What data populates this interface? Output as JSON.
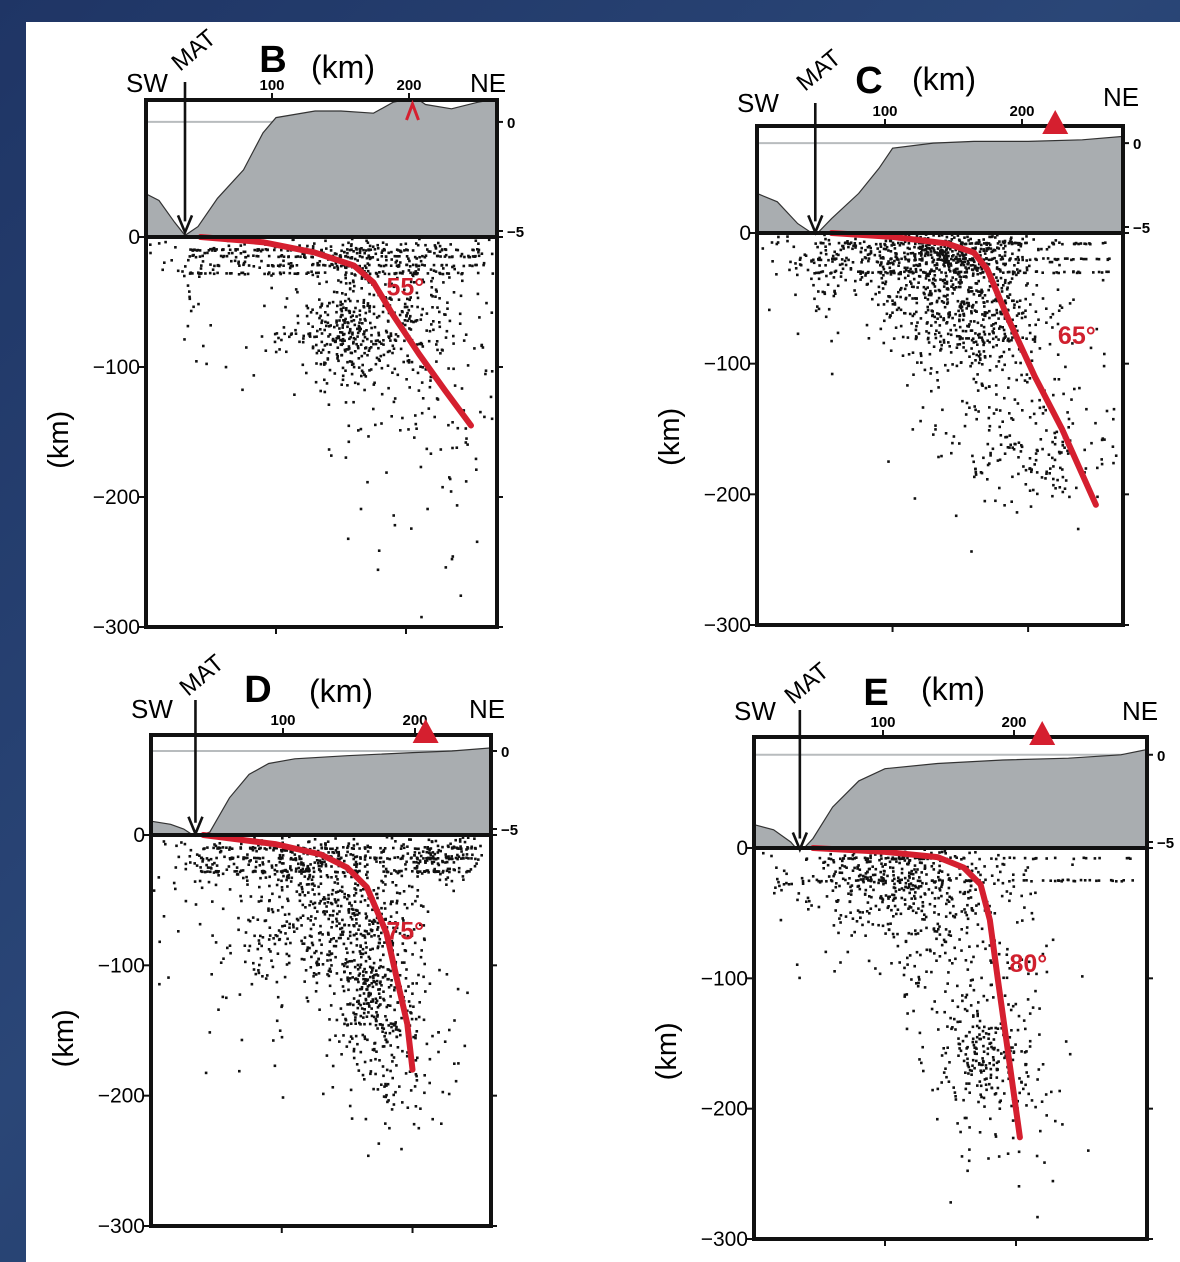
{
  "theme": {
    "background": "#233b6b",
    "topography_fill": "#a9adb0",
    "slab_color": "#d51f2f",
    "volcano_color": "#d51f2f",
    "sea_level_line": "#b8bcbe"
  },
  "chart_data": [
    {
      "type": "scatter",
      "panel": "B",
      "units": "(km)",
      "left_direction": "SW",
      "right_direction": "NE",
      "trench_label": "MAT",
      "ylabel": "(km)",
      "x_ticks": [
        "100",
        "200"
      ],
      "y_ticks": [
        "0",
        "−100",
        "−200",
        "−300"
      ],
      "topo_ticks": [
        "0",
        "−5"
      ],
      "xlim": [
        0,
        270
      ],
      "ylim": [
        -300,
        0
      ],
      "trench_x": 30,
      "volcano_x": 205,
      "volcano_marker": false,
      "slab_angle_label": "55°",
      "slab_angle_label_at": [
        185,
        -45
      ],
      "topography": [
        [
          0,
          -3.3
        ],
        [
          10,
          -3.6
        ],
        [
          22,
          -4.6
        ],
        [
          30,
          -5.2
        ],
        [
          40,
          -4.8
        ],
        [
          55,
          -3.5
        ],
        [
          75,
          -2.2
        ],
        [
          90,
          -0.5
        ],
        [
          100,
          0.2
        ],
        [
          130,
          0.5
        ],
        [
          150,
          0.5
        ],
        [
          175,
          0.4
        ],
        [
          190,
          0.9
        ],
        [
          198,
          1.5
        ],
        [
          205,
          2.3
        ],
        [
          210,
          1.5
        ],
        [
          215,
          0.8
        ],
        [
          235,
          0.6
        ],
        [
          255,
          0.9
        ],
        [
          265,
          1.5
        ],
        [
          270,
          2.4
        ]
      ],
      "slab": [
        [
          42,
          0
        ],
        [
          90,
          -4
        ],
        [
          130,
          -12
        ],
        [
          160,
          -22
        ],
        [
          175,
          -35
        ],
        [
          190,
          -60
        ],
        [
          210,
          -90
        ],
        [
          230,
          -118
        ],
        [
          250,
          -145
        ]
      ],
      "clusters": [
        {
          "cx": 180,
          "cy": -55,
          "sx": 36,
          "sy": 30,
          "n": 340
        },
        {
          "cx": 150,
          "cy": -75,
          "sx": 22,
          "sy": 17,
          "n": 180
        },
        {
          "cx": 150,
          "cy": -12,
          "sx": 75,
          "sy": 8,
          "n": 200
        },
        {
          "cx": 210,
          "cy": -120,
          "sx": 38,
          "sy": 42,
          "n": 120
        },
        {
          "cx": 40,
          "cy": -45,
          "sx": 22,
          "sy": 30,
          "n": 30
        },
        {
          "cx": 215,
          "cy": -230,
          "sx": 30,
          "sy": 40,
          "n": 14
        }
      ],
      "bands_km": [
        -10,
        -15,
        -22,
        -28
      ],
      "seed": 11
    },
    {
      "type": "scatter",
      "panel": "C",
      "units": "(km)",
      "left_direction": "SW",
      "right_direction": "NE",
      "trench_label": "MAT",
      "ylabel": "(km)",
      "x_ticks": [
        "100",
        "200"
      ],
      "y_ticks": [
        "0",
        "−100",
        "−200",
        "−300"
      ],
      "topo_ticks": [
        "0",
        "−5"
      ],
      "xlim": [
        0,
        270
      ],
      "ylim": [
        -300,
        0
      ],
      "trench_x": 43,
      "volcano_x": 220,
      "volcano_marker": true,
      "slab_angle_label": "65°",
      "slab_angle_label_at": [
        222,
        -85
      ],
      "topography": [
        [
          0,
          -3.0
        ],
        [
          15,
          -3.5
        ],
        [
          30,
          -4.8
        ],
        [
          43,
          -5.5
        ],
        [
          55,
          -4.5
        ],
        [
          75,
          -3.0
        ],
        [
          90,
          -1.5
        ],
        [
          100,
          -0.3
        ],
        [
          130,
          0.0
        ],
        [
          160,
          0.1
        ],
        [
          200,
          0.1
        ],
        [
          240,
          0.2
        ],
        [
          270,
          0.4
        ]
      ],
      "slab": [
        [
          55,
          0
        ],
        [
          100,
          -3
        ],
        [
          140,
          -8
        ],
        [
          160,
          -15
        ],
        [
          170,
          -28
        ],
        [
          185,
          -65
        ],
        [
          205,
          -110
        ],
        [
          225,
          -150
        ],
        [
          250,
          -208
        ]
      ],
      "clusters": [
        {
          "cx": 135,
          "cy": -18,
          "sx": 35,
          "sy": 12,
          "n": 460
        },
        {
          "cx": 160,
          "cy": -70,
          "sx": 25,
          "sy": 20,
          "n": 320
        },
        {
          "cx": 130,
          "cy": -40,
          "sx": 40,
          "sy": 25,
          "n": 220
        },
        {
          "cx": 210,
          "cy": -170,
          "sx": 35,
          "sy": 30,
          "n": 170
        },
        {
          "cx": 60,
          "cy": -20,
          "sx": 40,
          "sy": 20,
          "n": 120
        },
        {
          "cx": 180,
          "cy": -110,
          "sx": 40,
          "sy": 40,
          "n": 100
        }
      ],
      "bands_km": [
        -8,
        -20,
        -30
      ],
      "seed": 23
    },
    {
      "type": "scatter",
      "panel": "D",
      "units": "(km)",
      "left_direction": "SW",
      "right_direction": "NE",
      "trench_label": "MAT",
      "ylabel": "(km)",
      "x_ticks": [
        "100",
        "200"
      ],
      "y_ticks": [
        "0",
        "−100",
        "−200",
        "−300"
      ],
      "topo_ticks": [
        "0",
        "−5"
      ],
      "xlim": [
        0,
        260
      ],
      "ylim": [
        -300,
        0
      ],
      "trench_x": 34,
      "volcano_x": 210,
      "volcano_marker": true,
      "slab_angle_label": "75°",
      "slab_angle_label_at": [
        180,
        -80
      ],
      "topography": [
        [
          0,
          -4.5
        ],
        [
          15,
          -4.7
        ],
        [
          25,
          -5.0
        ],
        [
          34,
          -5.5
        ],
        [
          45,
          -5.2
        ],
        [
          60,
          -3.0
        ],
        [
          75,
          -1.5
        ],
        [
          90,
          -0.8
        ],
        [
          110,
          -0.5
        ],
        [
          150,
          -0.3
        ],
        [
          200,
          -0.1
        ],
        [
          230,
          0.0
        ],
        [
          260,
          0.2
        ]
      ],
      "slab": [
        [
          40,
          0
        ],
        [
          95,
          -7
        ],
        [
          130,
          -15
        ],
        [
          150,
          -25
        ],
        [
          165,
          -40
        ],
        [
          180,
          -75
        ],
        [
          188,
          -110
        ],
        [
          196,
          -145
        ],
        [
          200,
          -180
        ]
      ],
      "clusters": [
        {
          "cx": 140,
          "cy": -60,
          "sx": 30,
          "sy": 22,
          "n": 380
        },
        {
          "cx": 170,
          "cy": -120,
          "sx": 16,
          "sy": 30,
          "n": 300
        },
        {
          "cx": 110,
          "cy": -20,
          "sx": 60,
          "sy": 10,
          "n": 320
        },
        {
          "cx": 220,
          "cy": -15,
          "sx": 18,
          "sy": 12,
          "n": 120
        },
        {
          "cx": 190,
          "cy": -170,
          "sx": 25,
          "sy": 30,
          "n": 120
        },
        {
          "cx": 90,
          "cy": -90,
          "sx": 50,
          "sy": 45,
          "n": 110
        }
      ],
      "bands_km": [
        -10,
        -18,
        -28
      ],
      "seed": 37
    },
    {
      "type": "scatter",
      "panel": "E",
      "units": "(km)",
      "left_direction": "SW",
      "right_direction": "NE",
      "trench_label": "MAT",
      "ylabel": "(km)",
      "x_ticks": [
        "100",
        "200"
      ],
      "y_ticks": [
        "0",
        "−100",
        "−200",
        "−300"
      ],
      "topo_ticks": [
        "0",
        "−5"
      ],
      "xlim": [
        0,
        300
      ],
      "ylim": [
        -300,
        0
      ],
      "trench_x": 35,
      "volcano_x": 220,
      "volcano_marker": true,
      "slab_angle_label": "80°",
      "slab_angle_label_at": [
        195,
        -95
      ],
      "topography": [
        [
          0,
          -4.0
        ],
        [
          15,
          -4.3
        ],
        [
          28,
          -5.0
        ],
        [
          35,
          -5.6
        ],
        [
          45,
          -4.8
        ],
        [
          60,
          -3.0
        ],
        [
          80,
          -1.5
        ],
        [
          100,
          -0.8
        ],
        [
          140,
          -0.5
        ],
        [
          190,
          -0.3
        ],
        [
          240,
          -0.2
        ],
        [
          280,
          0.0
        ],
        [
          300,
          0.3
        ]
      ],
      "slab": [
        [
          45,
          0
        ],
        [
          100,
          -3
        ],
        [
          140,
          -7
        ],
        [
          160,
          -15
        ],
        [
          173,
          -28
        ],
        [
          180,
          -55
        ],
        [
          186,
          -100
        ],
        [
          193,
          -150
        ],
        [
          203,
          -222
        ]
      ],
      "clusters": [
        {
          "cx": 120,
          "cy": -35,
          "sx": 45,
          "sy": 25,
          "n": 300
        },
        {
          "cx": 180,
          "cy": -160,
          "sx": 22,
          "sy": 30,
          "n": 250
        },
        {
          "cx": 90,
          "cy": -20,
          "sx": 50,
          "sy": 12,
          "n": 140
        },
        {
          "cx": 150,
          "cy": -70,
          "sx": 35,
          "sy": 35,
          "n": 150
        },
        {
          "cx": 190,
          "cy": -220,
          "sx": 30,
          "sy": 30,
          "n": 30
        }
      ],
      "bands_km": [
        -8,
        -25
      ],
      "seed": 53
    }
  ]
}
